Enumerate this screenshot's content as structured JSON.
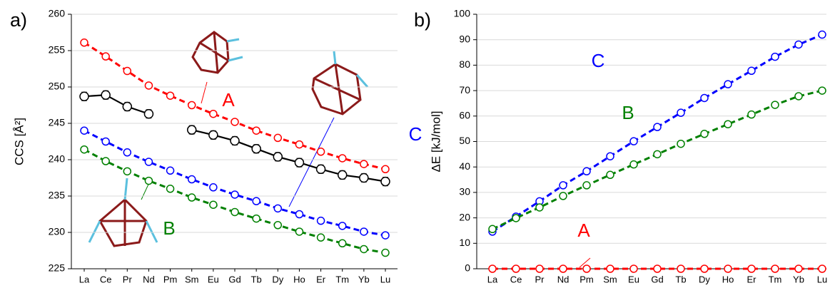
{
  "chart_data": [
    {
      "type": "line",
      "panel_label": "a)",
      "y_label": "CCS [Å²]",
      "categories": [
        "La",
        "Ce",
        "Pr",
        "Nd",
        "Pm",
        "Sm",
        "Eu",
        "Gd",
        "Tb",
        "Dy",
        "Ho",
        "Er",
        "Tm",
        "Yb",
        "Lu"
      ],
      "ylim": [
        225,
        260
      ],
      "yticks": [
        225,
        230,
        235,
        240,
        245,
        250,
        255,
        260
      ],
      "grid": true,
      "series": [
        {
          "name": "A",
          "color": "#ff0000",
          "dashed": true,
          "values": [
            256.1,
            254.2,
            252.2,
            250.2,
            248.8,
            247.5,
            246.3,
            245.2,
            244.0,
            243.0,
            242.1,
            241.1,
            240.2,
            239.4,
            238.7
          ]
        },
        {
          "name": "C",
          "color": "#0000ff",
          "dashed": true,
          "values": [
            244.0,
            242.5,
            241.0,
            239.7,
            238.5,
            237.3,
            236.2,
            235.2,
            234.3,
            233.3,
            232.5,
            231.6,
            230.9,
            230.1,
            229.6
          ]
        },
        {
          "name": "B",
          "color": "#008000",
          "dashed": true,
          "values": [
            241.4,
            239.8,
            238.4,
            237.1,
            236.0,
            234.8,
            233.8,
            232.8,
            231.9,
            231.0,
            230.1,
            229.3,
            228.5,
            227.7,
            227.2
          ]
        },
        {
          "color": "#000000",
          "dashed": false,
          "values": [
            248.7,
            248.9,
            247.3,
            246.3,
            null,
            244.1,
            243.4,
            242.6,
            241.5,
            240.4,
            239.6,
            238.7,
            237.9,
            237.5,
            237.0
          ],
          "errors": [
            0.6,
            0.6,
            0.6,
            0.6,
            null,
            0.6,
            0.6,
            0.6,
            0.6,
            0.6,
            0.6,
            0.6,
            0.6,
            0.6,
            0.6
          ]
        }
      ]
    },
    {
      "type": "line",
      "panel_label": "b)",
      "y_label": "ΔE [kJ/mol]",
      "categories": [
        "La",
        "Ce",
        "Pr",
        "Nd",
        "Pm",
        "Sm",
        "Eu",
        "Gd",
        "Tb",
        "Dy",
        "Ho",
        "Er",
        "Tm",
        "Yb",
        "Lu"
      ],
      "ylim": [
        0,
        100
      ],
      "yticks": [
        0,
        10,
        20,
        30,
        40,
        50,
        60,
        70,
        80,
        90,
        100
      ],
      "grid": true,
      "series": [
        {
          "name": "A",
          "color": "#ff0000",
          "dashed": true,
          "values": [
            0,
            0,
            0,
            0,
            0,
            0,
            0,
            0,
            0,
            0,
            0,
            0,
            0,
            0,
            0
          ]
        },
        {
          "name": "C",
          "color": "#0000ff",
          "dashed": true,
          "values": [
            14.6,
            20.5,
            26.5,
            32.8,
            38.3,
            44.2,
            50.1,
            55.7,
            61.3,
            67.1,
            72.5,
            77.8,
            83.3,
            88.1,
            92.0
          ]
        },
        {
          "name": "B",
          "color": "#008000",
          "dashed": true,
          "values": [
            15.6,
            19.9,
            24.1,
            28.6,
            32.8,
            36.9,
            41.0,
            45.0,
            49.1,
            53.0,
            56.8,
            60.6,
            64.4,
            67.8,
            70.0
          ]
        }
      ]
    }
  ]
}
